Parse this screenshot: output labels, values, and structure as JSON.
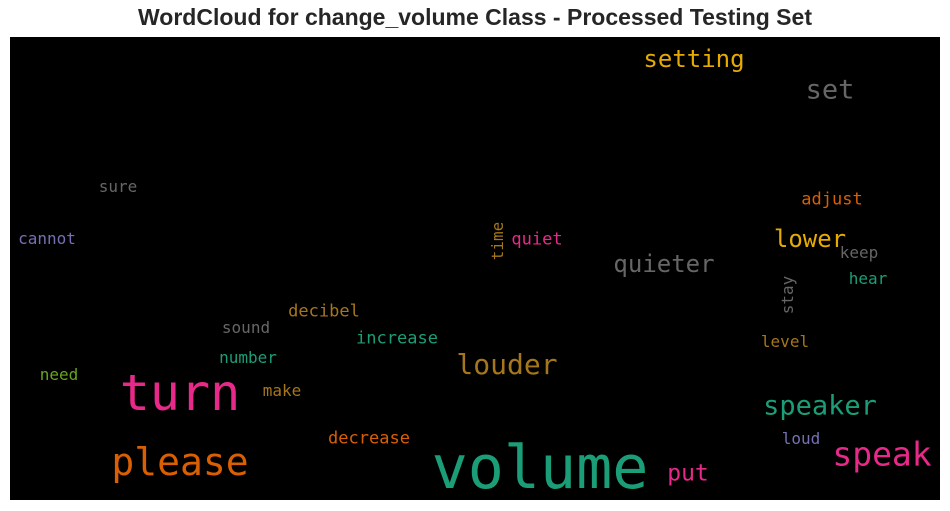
{
  "chart_data": {
    "type": "wordcloud",
    "title": "WordCloud for change_volume Class - Processed Testing Set",
    "background": "#000000",
    "words": [
      {
        "text": "volume",
        "color": "#1b9e77",
        "rotated": false
      },
      {
        "text": "turn",
        "color": "#e7298a",
        "rotated": false
      },
      {
        "text": "please",
        "color": "#d95f02",
        "rotated": false
      },
      {
        "text": "speak",
        "color": "#e7298a",
        "rotated": false
      },
      {
        "text": "louder",
        "color": "#a6761d",
        "rotated": false
      },
      {
        "text": "speaker",
        "color": "#1b9e77",
        "rotated": false
      },
      {
        "text": "setting",
        "color": "#e6ab02",
        "rotated": false
      },
      {
        "text": "set",
        "color": "#666666",
        "rotated": false
      },
      {
        "text": "quieter",
        "color": "#666666",
        "rotated": false
      },
      {
        "text": "lower",
        "color": "#e6ab02",
        "rotated": false
      },
      {
        "text": "put",
        "color": "#e7298a",
        "rotated": false
      },
      {
        "text": "adjust",
        "color": "#d95f02",
        "rotated": false
      },
      {
        "text": "sure",
        "color": "#666666",
        "rotated": false
      },
      {
        "text": "cannot",
        "color": "#7570b3",
        "rotated": false
      },
      {
        "text": "time",
        "color": "#a6761d",
        "rotated": true
      },
      {
        "text": "quiet",
        "color": "#e7298a",
        "rotated": false
      },
      {
        "text": "keep",
        "color": "#666666",
        "rotated": false
      },
      {
        "text": "hear",
        "color": "#1b9e77",
        "rotated": false
      },
      {
        "text": "stay",
        "color": "#666666",
        "rotated": true
      },
      {
        "text": "decibel",
        "color": "#a6761d",
        "rotated": false
      },
      {
        "text": "sound",
        "color": "#666666",
        "rotated": false
      },
      {
        "text": "increase",
        "color": "#1b9e77",
        "rotated": false
      },
      {
        "text": "level",
        "color": "#a6761d",
        "rotated": false
      },
      {
        "text": "number",
        "color": "#1b9e77",
        "rotated": false
      },
      {
        "text": "need",
        "color": "#66a61e",
        "rotated": false
      },
      {
        "text": "make",
        "color": "#a6761d",
        "rotated": false
      },
      {
        "text": "decrease",
        "color": "#d95f02",
        "rotated": false
      },
      {
        "text": "loud",
        "color": "#7570b3",
        "rotated": false
      }
    ]
  }
}
